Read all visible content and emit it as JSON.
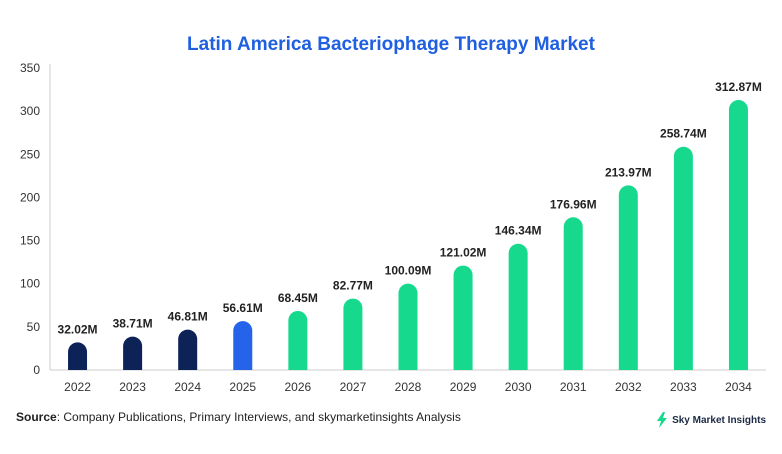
{
  "chart_data": {
    "type": "bar",
    "title": "Latin America Bacteriophage Therapy Market",
    "categories": [
      "2022",
      "2023",
      "2024",
      "2025",
      "2026",
      "2027",
      "2028",
      "2029",
      "2030",
      "2031",
      "2032",
      "2033",
      "2034"
    ],
    "values": [
      32.02,
      38.71,
      46.81,
      56.61,
      68.45,
      82.77,
      100.09,
      121.02,
      146.34,
      176.96,
      213.97,
      258.74,
      312.87
    ],
    "data_labels": [
      "32.02M",
      "38.71M",
      "46.81M",
      "56.61M",
      "68.45M",
      "82.77M",
      "100.09M",
      "121.02M",
      "146.34M",
      "176.96M",
      "213.97M",
      "258.74M",
      "312.87M"
    ],
    "yticks": [
      0,
      50,
      100,
      150,
      200,
      250,
      300,
      350
    ],
    "ylim": [
      0,
      350
    ],
    "xlabel": "",
    "ylabel": "",
    "grid": false,
    "bar_colors": [
      "#0d2257",
      "#0d2257",
      "#0d2257",
      "#2563eb",
      "#17d98e",
      "#17d98e",
      "#17d98e",
      "#17d98e",
      "#17d98e",
      "#17d98e",
      "#17d98e",
      "#17d98e",
      "#17d98e"
    ]
  },
  "source": {
    "label": "Source",
    "text": ": Company Publications, Primary Interviews, and skymarketinsights Analysis"
  },
  "brand": {
    "name": "Sky Market Insights",
    "icon": "lightning-bolt-icon"
  }
}
